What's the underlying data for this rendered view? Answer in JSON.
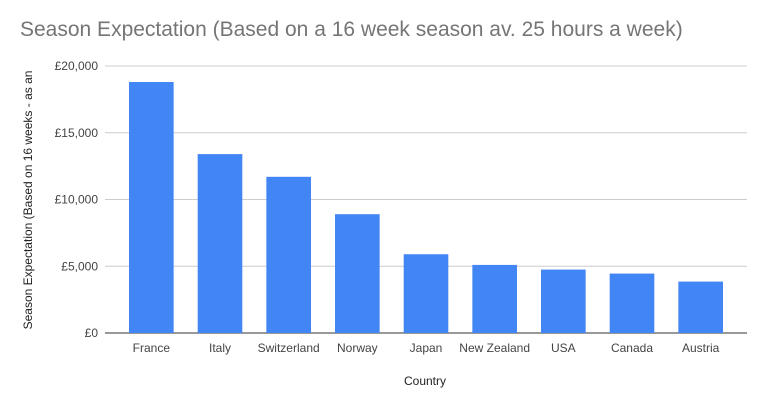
{
  "chart_data": {
    "type": "bar",
    "title": "Season Expectation (Based on a 16 week season av. 25 hours a week)",
    "xlabel": "Country",
    "ylabel": "Season Expectation (Based on 16 weeks - as an",
    "categories": [
      "France",
      "Italy",
      "Switzerland",
      "Norway",
      "Japan",
      "New Zealand",
      "USA",
      "Canada",
      "Austria"
    ],
    "values": [
      18800,
      13400,
      11700,
      8900,
      5900,
      5100,
      4750,
      4450,
      3850
    ],
    "ylim": [
      0,
      20000
    ],
    "yticks": [
      0,
      5000,
      10000,
      15000,
      20000
    ],
    "ytick_labels": [
      "£0",
      "£5,000",
      "£10,000",
      "£15,000",
      "£20,000"
    ],
    "grid": true,
    "legend": "none",
    "bar_color": "#4285f4"
  }
}
